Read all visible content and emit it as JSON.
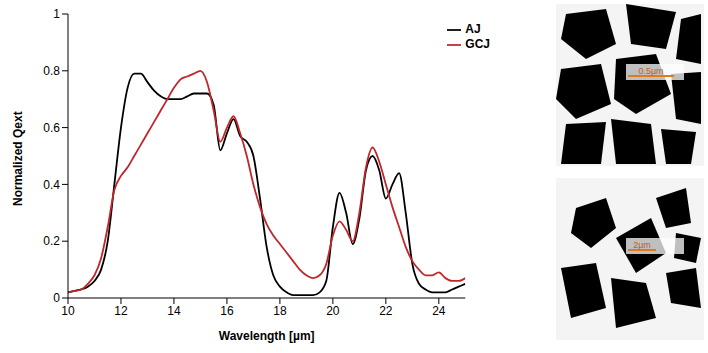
{
  "chart_data": {
    "type": "line",
    "x_label": "Wavelength [µm]",
    "y_label": "Normalized Qext",
    "annotations": [
      "0.5µm",
      "2µm"
    ],
    "xlim": [
      10,
      25
    ],
    "xticks": [
      10,
      12,
      14,
      16,
      18,
      20,
      22,
      24
    ],
    "ylim": [
      0,
      1
    ],
    "yticks": [
      0,
      0.2,
      0.4,
      0.6,
      0.8,
      1
    ],
    "grid": false,
    "legend": "top-right",
    "x": [
      10,
      10.25,
      10.5,
      10.75,
      11,
      11.25,
      11.5,
      11.75,
      12,
      12.25,
      12.5,
      12.75,
      13,
      13.25,
      13.5,
      13.75,
      14,
      14.25,
      14.5,
      14.75,
      15,
      15.25,
      15.5,
      15.75,
      16,
      16.25,
      16.5,
      16.75,
      17,
      17.25,
      17.5,
      17.75,
      18,
      18.25,
      18.5,
      18.75,
      19,
      19.25,
      19.5,
      19.75,
      20,
      20.25,
      20.5,
      20.75,
      21,
      21.25,
      21.5,
      21.75,
      22,
      22.25,
      22.5,
      22.75,
      23,
      23.25,
      23.5,
      23.75,
      24,
      24.25,
      24.5,
      24.75,
      25
    ],
    "series": [
      {
        "name": "AJ",
        "color": "#000000",
        "values": [
          0.02,
          0.025,
          0.03,
          0.04,
          0.06,
          0.1,
          0.2,
          0.4,
          0.6,
          0.74,
          0.79,
          0.79,
          0.76,
          0.73,
          0.71,
          0.7,
          0.7,
          0.7,
          0.71,
          0.72,
          0.72,
          0.72,
          0.68,
          0.52,
          0.58,
          0.63,
          0.57,
          0.55,
          0.5,
          0.35,
          0.18,
          0.08,
          0.04,
          0.02,
          0.01,
          0.01,
          0.01,
          0.01,
          0.02,
          0.06,
          0.25,
          0.37,
          0.3,
          0.19,
          0.28,
          0.45,
          0.5,
          0.45,
          0.35,
          0.4,
          0.44,
          0.3,
          0.12,
          0.05,
          0.03,
          0.02,
          0.02,
          0.02,
          0.03,
          0.04,
          0.05
        ]
      },
      {
        "name": "GCJ",
        "color": "#c0262b",
        "values": [
          0.02,
          0.025,
          0.03,
          0.05,
          0.08,
          0.14,
          0.25,
          0.38,
          0.43,
          0.46,
          0.5,
          0.54,
          0.58,
          0.62,
          0.66,
          0.7,
          0.74,
          0.77,
          0.78,
          0.79,
          0.8,
          0.76,
          0.66,
          0.55,
          0.6,
          0.64,
          0.58,
          0.5,
          0.4,
          0.32,
          0.26,
          0.22,
          0.19,
          0.16,
          0.13,
          0.1,
          0.08,
          0.07,
          0.08,
          0.12,
          0.22,
          0.27,
          0.24,
          0.2,
          0.3,
          0.46,
          0.53,
          0.48,
          0.4,
          0.32,
          0.25,
          0.18,
          0.13,
          0.1,
          0.08,
          0.08,
          0.09,
          0.07,
          0.06,
          0.06,
          0.07
        ]
      }
    ]
  }
}
